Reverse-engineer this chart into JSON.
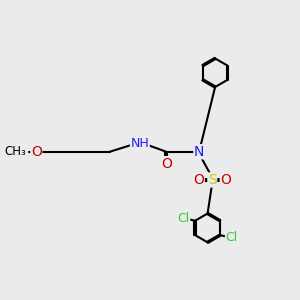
{
  "bg_color": "#ebebeb",
  "bond_color": "#000000",
  "bond_width": 1.5,
  "atom_colors": {
    "N": "#1a1aff",
    "O": "#cc0000",
    "S": "#cccc00",
    "Cl": "#33cc33",
    "H_color": "#6e8b8b",
    "C": "#000000"
  },
  "font_size_atom": 9,
  "figsize": [
    3.0,
    3.0
  ],
  "dpi": 100
}
